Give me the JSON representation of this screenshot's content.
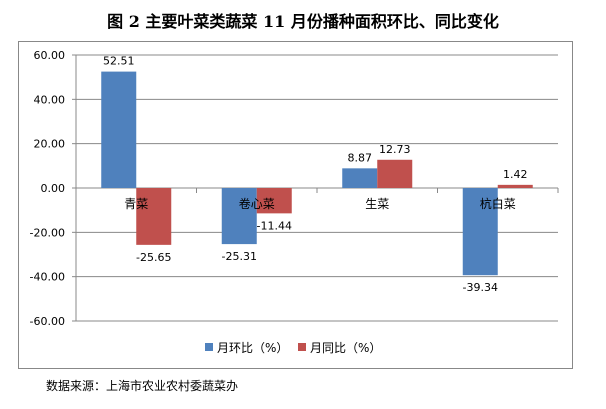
{
  "chart_data": {
    "type": "bar",
    "title": "图 2  主要叶菜类蔬菜 11 月份播种面积环比、同比变化",
    "categories": [
      "青菜",
      "卷心菜",
      "生菜",
      "杭白菜"
    ],
    "series": [
      {
        "name": "月环比（%）",
        "color": "#4F81BD",
        "values": [
          52.51,
          -25.31,
          8.87,
          -39.34
        ],
        "labels": [
          "52.51",
          "-25.31",
          "8.87",
          "-39.34"
        ]
      },
      {
        "name": "月同比（%）",
        "color": "#C0504D",
        "values": [
          -25.65,
          -11.44,
          12.73,
          1.42
        ],
        "labels": [
          "-25.65",
          "-11.44",
          "12.73",
          "1.42"
        ]
      }
    ],
    "ylim": [
      -60,
      60
    ],
    "yticks": [
      "60.00",
      "40.00",
      "20.00",
      "0.00",
      "-20.00",
      "-40.00",
      "-60.00"
    ],
    "ytick_values": [
      60,
      40,
      20,
      0,
      -20,
      -40,
      -60
    ],
    "grid": true,
    "legend": "bottom"
  },
  "source": "数据来源：上海市农业农村委蔬菜办"
}
